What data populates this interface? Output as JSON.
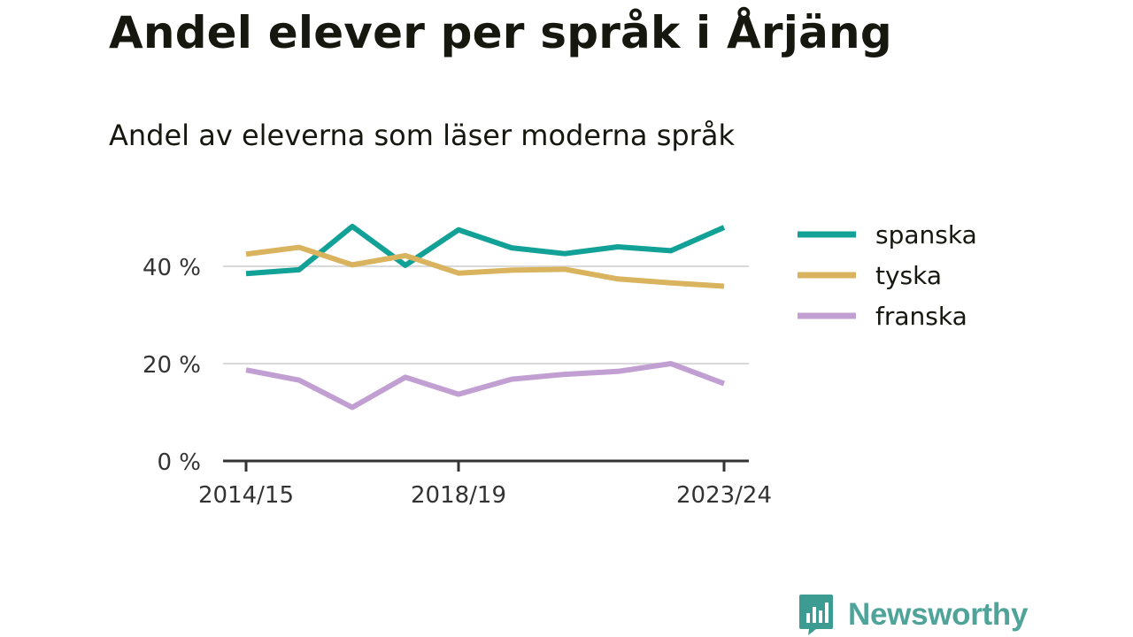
{
  "title": "Andel elever per språk i Årjäng",
  "subtitle": "Andel av eleverna som läser moderna språk",
  "brand": {
    "name": "Newsworthy",
    "color": "#3c9c92",
    "icon": "newsworthy-logo-icon"
  },
  "chart_data": {
    "type": "line",
    "x": [
      "2014/15",
      "2015/16",
      "2016/17",
      "2017/18",
      "2018/19",
      "2019/20",
      "2020/21",
      "2021/22",
      "2022/23",
      "2023/24"
    ],
    "x_tick_labels": [
      "2014/15",
      "2018/19",
      "2023/24"
    ],
    "y_ticks": [
      {
        "value": 0,
        "label": "0 %"
      },
      {
        "value": 20,
        "label": "20 %"
      },
      {
        "value": 40,
        "label": "40 %"
      }
    ],
    "ylim": [
      0,
      50
    ],
    "grid": true,
    "legend_position": "right",
    "series": [
      {
        "name": "spanska",
        "color": "#12a196",
        "values": [
          38.5,
          39.3,
          48.2,
          40.2,
          47.5,
          43.8,
          42.6,
          44.0,
          43.2,
          48.0
        ]
      },
      {
        "name": "tyska",
        "color": "#dab35e",
        "values": [
          42.5,
          43.9,
          40.3,
          42.2,
          38.6,
          39.2,
          39.4,
          37.4,
          36.6,
          35.9
        ]
      },
      {
        "name": "franska",
        "color": "#c19fd3",
        "values": [
          18.7,
          16.6,
          11.0,
          17.2,
          13.7,
          16.8,
          17.8,
          18.4,
          20.0,
          15.9
        ]
      }
    ]
  }
}
